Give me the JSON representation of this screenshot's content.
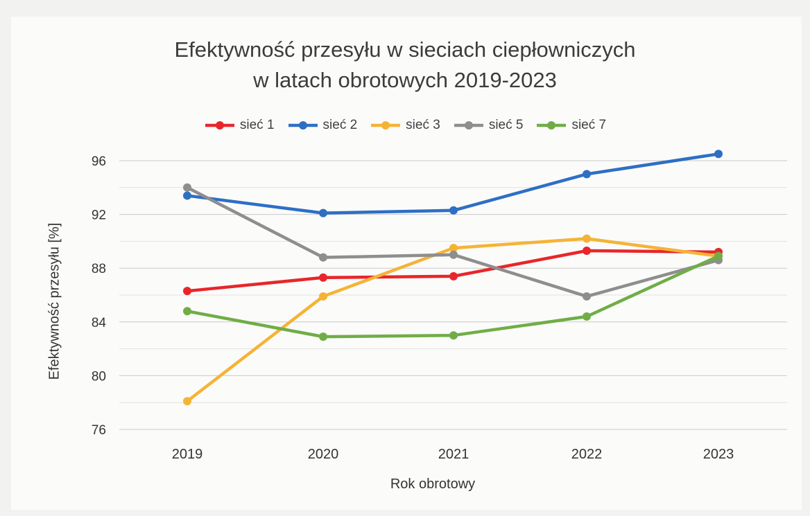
{
  "chart_data": {
    "type": "line",
    "title_lines": [
      "Efektywność przesyłu w sieciach ciepłowniczych",
      "w latach obrotowych 2019-2023"
    ],
    "xlabel": "Rok obrotowy",
    "ylabel": "Efektywność przesyłu [%]",
    "categories": [
      "2019",
      "2020",
      "2021",
      "2022",
      "2023"
    ],
    "ylim": [
      76,
      96
    ],
    "yticks": [
      "76",
      "80",
      "84",
      "88",
      "92",
      "96"
    ],
    "grid": true,
    "legend_position": "top",
    "series": [
      {
        "name": "sieć 1",
        "color": "#e8262a",
        "values": [
          86.3,
          87.3,
          87.4,
          89.3,
          89.2
        ]
      },
      {
        "name": "sieć 2",
        "color": "#2e6fc4",
        "values": [
          93.4,
          92.1,
          92.3,
          95.0,
          96.5
        ]
      },
      {
        "name": "sieć 3",
        "color": "#f5b335",
        "values": [
          78.1,
          85.9,
          89.5,
          90.2,
          88.9
        ]
      },
      {
        "name": "sieć 5",
        "color": "#8e8e8e",
        "values": [
          94.0,
          88.8,
          89.0,
          85.9,
          88.6
        ]
      },
      {
        "name": "sieć 7",
        "color": "#70ad47",
        "values": [
          84.8,
          82.9,
          83.0,
          84.4,
          88.9
        ]
      }
    ]
  }
}
